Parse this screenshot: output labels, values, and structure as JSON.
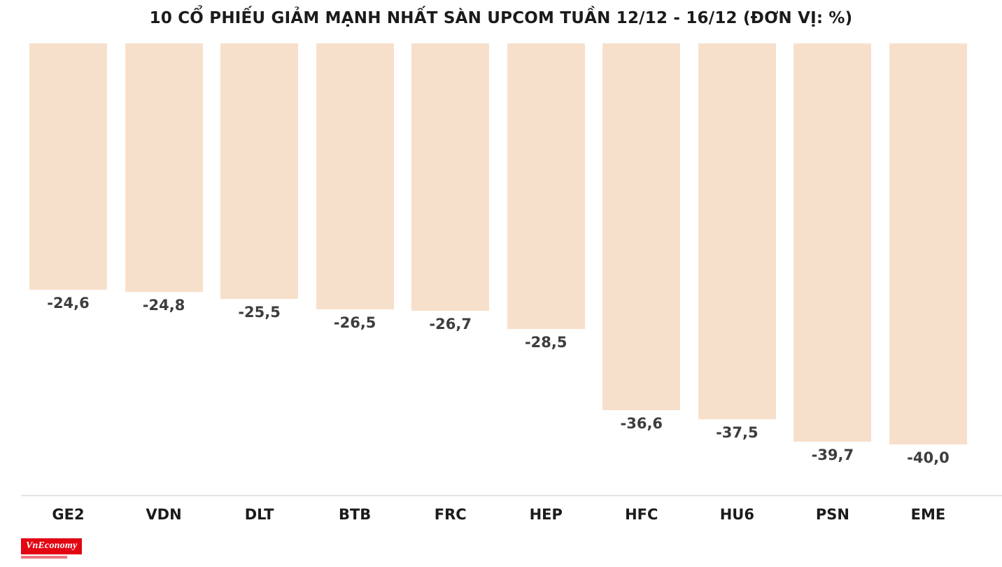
{
  "chart_data": {
    "type": "bar",
    "title": "10 CỔ PHIẾU GIẢM MẠNH NHẤT SÀN UPCOM TUẦN 12/12 - 16/12 (ĐƠN VỊ: %)",
    "categories": [
      "GE2",
      "VDN",
      "DLT",
      "BTB",
      "FRC",
      "HEP",
      "HFC",
      "HU6",
      "PSN",
      "EME"
    ],
    "values": [
      -24.6,
      -24.8,
      -25.5,
      -26.5,
      -26.7,
      -28.5,
      -36.6,
      -37.5,
      -39.7,
      -40.0
    ],
    "value_labels": [
      "-24,6",
      "-24,8",
      "-25,5",
      "-26,5",
      "-26,7",
      "-28,5",
      "-36,6",
      "-37,5",
      "-39,7",
      "-40,0"
    ],
    "unit": "%",
    "orientation": "bars-hang-from-top",
    "ylim": [
      -40,
      0
    ],
    "grid": false,
    "legend": "none",
    "bar_color": "#f7e0cb",
    "value_label_color": "#3d3d3d",
    "axis_line_color": "#e4e4e4"
  },
  "branding": {
    "logo_text": "VnEconomy",
    "logo_bg": "#e20613",
    "logo_text_color": "#ffffff"
  }
}
